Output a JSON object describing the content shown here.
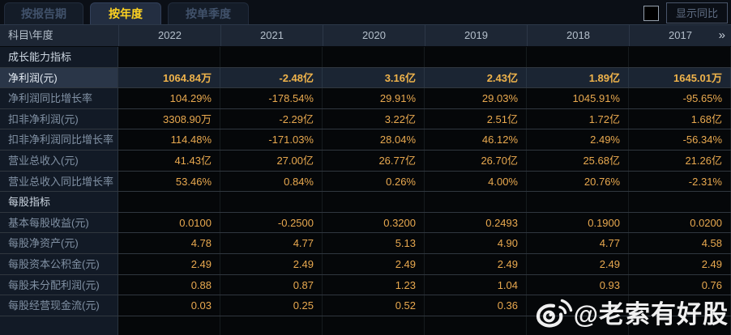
{
  "tabs": [
    {
      "label": "按报告期",
      "selected": false
    },
    {
      "label": "按年度",
      "selected": true
    },
    {
      "label": "按单季度",
      "selected": false
    }
  ],
  "controls": {
    "show_yoy_label": "显示同比",
    "checkbox_checked": false
  },
  "table": {
    "corner_header": "科目\\年度",
    "year_columns": [
      "2022",
      "2021",
      "2020",
      "2019",
      "2018",
      "2017"
    ],
    "more_columns_icon": "»",
    "rows": [
      {
        "type": "section",
        "label": "成长能力指标",
        "values": [
          "",
          "",
          "",
          "",
          "",
          ""
        ]
      },
      {
        "type": "highlight",
        "label": "净利润(元)",
        "values": [
          "1064.84万",
          "-2.48亿",
          "3.16亿",
          "2.43亿",
          "1.89亿",
          "1645.01万"
        ]
      },
      {
        "type": "normal",
        "label": "净利润同比增长率",
        "values": [
          "104.29%",
          "-178.54%",
          "29.91%",
          "29.03%",
          "1045.91%",
          "-95.65%"
        ]
      },
      {
        "type": "normal",
        "label": "扣非净利润(元)",
        "values": [
          "3308.90万",
          "-2.29亿",
          "3.22亿",
          "2.51亿",
          "1.72亿",
          "1.68亿"
        ]
      },
      {
        "type": "normal",
        "label": "扣非净利润同比增长率",
        "values": [
          "114.48%",
          "-171.03%",
          "28.04%",
          "46.12%",
          "2.49%",
          "-56.34%"
        ]
      },
      {
        "type": "normal",
        "label": "营业总收入(元)",
        "values": [
          "41.43亿",
          "27.00亿",
          "26.77亿",
          "26.70亿",
          "25.68亿",
          "21.26亿"
        ]
      },
      {
        "type": "normal",
        "label": "营业总收入同比增长率",
        "values": [
          "53.46%",
          "0.84%",
          "0.26%",
          "4.00%",
          "20.76%",
          "-2.31%"
        ]
      },
      {
        "type": "section",
        "label": "每股指标",
        "values": [
          "",
          "",
          "",
          "",
          "",
          ""
        ]
      },
      {
        "type": "normal",
        "label": "基本每股收益(元)",
        "values": [
          "0.0100",
          "-0.2500",
          "0.3200",
          "0.2493",
          "0.1900",
          "0.0200"
        ]
      },
      {
        "type": "normal",
        "label": "每股净资产(元)",
        "values": [
          "4.78",
          "4.77",
          "5.13",
          "4.90",
          "4.77",
          "4.58"
        ]
      },
      {
        "type": "normal",
        "label": "每股资本公积金(元)",
        "values": [
          "2.49",
          "2.49",
          "2.49",
          "2.49",
          "2.49",
          "2.49"
        ]
      },
      {
        "type": "normal",
        "label": "每股未分配利润(元)",
        "values": [
          "0.88",
          "0.87",
          "1.23",
          "1.04",
          "0.93",
          "0.76"
        ]
      },
      {
        "type": "normal",
        "label": "每股经营现金流(元)",
        "values": [
          "0.03",
          "0.25",
          "0.52",
          "0.36",
          "",
          ""
        ]
      },
      {
        "type": "empty",
        "label": "",
        "values": [
          "",
          "",
          "",
          "",
          "",
          ""
        ]
      }
    ]
  },
  "watermark": {
    "icon": "weibo-icon",
    "handle": "@老索有好股"
  },
  "colors": {
    "accent_gold": "#ffd321",
    "value_gold": "#e9a94f",
    "background": "#0b0f16",
    "header_bg": "#1d2634",
    "highlight_row_bg": "#1b2533"
  }
}
